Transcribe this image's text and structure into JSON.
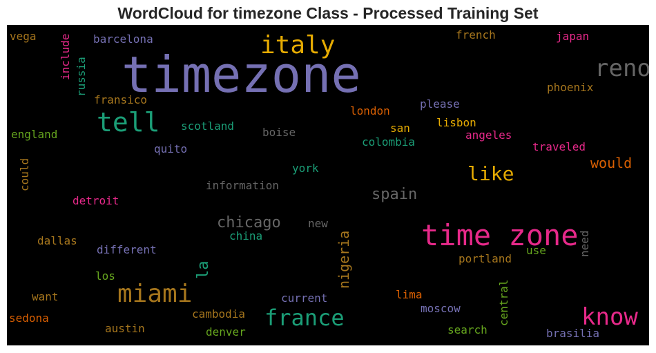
{
  "title": "WordCloud for timezone Class - Processed Training Set",
  "colors": {
    "purple": "#7570b3",
    "green": "#1b9e77",
    "orange": "#d95f02",
    "pink": "#e7298a",
    "lime": "#66a61e",
    "gold": "#e6ab02",
    "brown": "#a6761d",
    "gray": "#666666"
  },
  "words": {
    "timezone": "timezone",
    "time_zone": "time zone",
    "italy": "italy",
    "tell": "tell",
    "reno": "reno",
    "miami": "miami",
    "france": "france",
    "know": "know",
    "like": "like",
    "chicago": "chicago",
    "spain": "spain",
    "would": "would",
    "nigeria": "nigeria",
    "la": "la",
    "vega": "vega",
    "barcelona": "barcelona",
    "include": "include",
    "russia": "russia",
    "french": "french",
    "japan": "japan",
    "phoenix": "phoenix",
    "fransico": "fransico",
    "please": "please",
    "london": "london",
    "scotland": "scotland",
    "san": "san",
    "lisbon": "lisbon",
    "england": "england",
    "boise": "boise",
    "angeles": "angeles",
    "colombia": "colombia",
    "traveled": "traveled",
    "quito": "quito",
    "could": "could",
    "york": "york",
    "information": "information",
    "detroit": "detroit",
    "new": "new",
    "need": "need",
    "dallas": "dallas",
    "china": "china",
    "different": "different",
    "use": "use",
    "portland": "portland",
    "los": "los",
    "central": "central",
    "want": "want",
    "current": "current",
    "lima": "lima",
    "sedona": "sedona",
    "cambodia": "cambodia",
    "moscow": "moscow",
    "austin": "austin",
    "denver": "denver",
    "search": "search",
    "brasilia": "brasilia"
  }
}
